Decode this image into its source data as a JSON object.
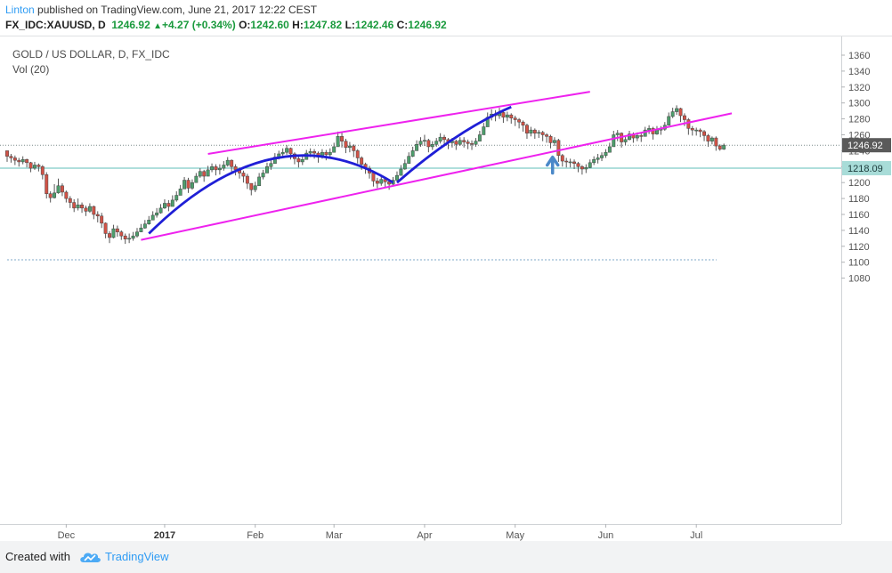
{
  "header": {
    "author": "Linton",
    "published_text": " published on TradingView.com, June 21, 2017 12:22 CEST",
    "symbol": "FX_IDC:XAUUSD, D",
    "last": "1246.92",
    "change_arrow": "▲",
    "change": "+4.27 (+0.34%)",
    "open_label": "O:",
    "open": "1242.60",
    "high_label": "H:",
    "high": "1247.82",
    "low_label": "L:",
    "low": "1242.46",
    "close_label": "C:",
    "close": "1246.92"
  },
  "legend": {
    "title": "GOLD / US DOLLAR, D, FX_IDC",
    "indicator": "Vol (20)"
  },
  "footer": {
    "created_with": "Created with",
    "brand": "TradingView"
  },
  "colors": {
    "up": "#4d9e6c",
    "down": "#d15246",
    "trendline": "#ee22ee",
    "arc": "#1f1fd6",
    "arrow": "#4a88c8",
    "hline": "#5fbfb8",
    "price_tag": "#5a5a5a",
    "hline_tag": "#a8dcd8"
  },
  "chart_data": {
    "type": "candlestick",
    "symbol": "GOLD / US DOLLAR, D, FX_IDC",
    "ylim": [
      1065,
      1373
    ],
    "y_ticks": [
      1080,
      1100,
      1120,
      1140,
      1160,
      1180,
      1200,
      1220,
      1240,
      1260,
      1280,
      1300,
      1320,
      1340,
      1360
    ],
    "x_ticks": [
      "Dec",
      "2017",
      "Feb",
      "Mar",
      "Apr",
      "May",
      "Jun",
      "Jul"
    ],
    "last_price_label": "1246.92",
    "horizontal_line_label": "1218.09",
    "price_line": 1246.92,
    "horizontal_line": 1218.09,
    "dotted_line": 1103,
    "close": [
      1233,
      1231,
      1228,
      1226,
      1229,
      1225,
      1218,
      1222,
      1220,
      1210,
      1186,
      1181,
      1187,
      1196,
      1188,
      1180,
      1175,
      1168,
      1172,
      1168,
      1164,
      1170,
      1160,
      1158,
      1149,
      1136,
      1131,
      1142,
      1138,
      1133,
      1129,
      1130,
      1133,
      1138,
      1143,
      1148,
      1153,
      1159,
      1162,
      1168,
      1174,
      1170,
      1178,
      1184,
      1192,
      1203,
      1193,
      1200,
      1208,
      1214,
      1208,
      1216,
      1220,
      1216,
      1218,
      1222,
      1228,
      1220,
      1216,
      1212,
      1208,
      1199,
      1191,
      1196,
      1207,
      1212,
      1220,
      1224,
      1232,
      1236,
      1238,
      1243,
      1236,
      1230,
      1226,
      1229,
      1237,
      1239,
      1237,
      1232,
      1238,
      1235,
      1238,
      1245,
      1258,
      1252,
      1244,
      1246,
      1240,
      1231,
      1223,
      1218,
      1212,
      1202,
      1199,
      1204,
      1201,
      1198,
      1203,
      1209,
      1217,
      1224,
      1233,
      1240,
      1248,
      1252,
      1253,
      1245,
      1248,
      1252,
      1257,
      1254,
      1250,
      1252,
      1248,
      1253,
      1251,
      1249,
      1248,
      1252,
      1260,
      1270,
      1282,
      1286,
      1284,
      1288,
      1282,
      1285,
      1281,
      1279,
      1276,
      1272,
      1262,
      1266,
      1262,
      1263,
      1260,
      1258,
      1250,
      1253,
      1234,
      1227,
      1226,
      1226,
      1224,
      1220,
      1217,
      1219,
      1225,
      1229,
      1231,
      1234,
      1238,
      1245,
      1260,
      1262,
      1251,
      1254,
      1261,
      1256,
      1259,
      1258,
      1266,
      1268,
      1261,
      1267,
      1267,
      1272,
      1283,
      1289,
      1293,
      1284,
      1279,
      1268,
      1266,
      1266,
      1264,
      1259,
      1252,
      1256,
      1246,
      1242,
      1247
    ],
    "high": [
      1238,
      1236,
      1234,
      1231,
      1233,
      1230,
      1226,
      1226,
      1224,
      1222,
      1213,
      1189,
      1198,
      1205,
      1199,
      1190,
      1183,
      1179,
      1180,
      1175,
      1171,
      1174,
      1171,
      1164,
      1162,
      1150,
      1139,
      1147,
      1146,
      1140,
      1136,
      1136,
      1138,
      1143,
      1148,
      1153,
      1158,
      1164,
      1168,
      1173,
      1179,
      1178,
      1184,
      1189,
      1197,
      1207,
      1206,
      1204,
      1212,
      1218,
      1216,
      1221,
      1224,
      1223,
      1223,
      1227,
      1232,
      1229,
      1223,
      1219,
      1215,
      1211,
      1199,
      1201,
      1212,
      1216,
      1225,
      1229,
      1237,
      1240,
      1243,
      1247,
      1244,
      1238,
      1233,
      1233,
      1241,
      1243,
      1242,
      1239,
      1242,
      1241,
      1243,
      1250,
      1264,
      1263,
      1255,
      1251,
      1248,
      1242,
      1233,
      1225,
      1221,
      1215,
      1206,
      1208,
      1206,
      1203,
      1207,
      1214,
      1222,
      1229,
      1238,
      1245,
      1253,
      1257,
      1260,
      1255,
      1252,
      1256,
      1262,
      1260,
      1256,
      1256,
      1254,
      1257,
      1257,
      1254,
      1253,
      1256,
      1265,
      1275,
      1288,
      1292,
      1291,
      1294,
      1290,
      1289,
      1287,
      1284,
      1281,
      1278,
      1274,
      1270,
      1268,
      1266,
      1265,
      1262,
      1260,
      1257,
      1255,
      1236,
      1231,
      1230,
      1229,
      1226,
      1222,
      1223,
      1229,
      1233,
      1236,
      1238,
      1242,
      1250,
      1265,
      1266,
      1263,
      1258,
      1265,
      1263,
      1263,
      1262,
      1270,
      1272,
      1270,
      1271,
      1271,
      1276,
      1288,
      1294,
      1297,
      1294,
      1287,
      1281,
      1271,
      1269,
      1268,
      1266,
      1261,
      1258,
      1258,
      1248,
      1249
    ],
    "low": [
      1226,
      1225,
      1222,
      1220,
      1223,
      1219,
      1213,
      1216,
      1214,
      1204,
      1180,
      1175,
      1180,
      1186,
      1183,
      1175,
      1168,
      1163,
      1165,
      1162,
      1158,
      1162,
      1154,
      1150,
      1143,
      1130,
      1124,
      1130,
      1132,
      1128,
      1123,
      1124,
      1127,
      1131,
      1138,
      1142,
      1147,
      1153,
      1156,
      1161,
      1167,
      1164,
      1170,
      1176,
      1185,
      1193,
      1187,
      1191,
      1200,
      1206,
      1201,
      1208,
      1213,
      1209,
      1210,
      1215,
      1220,
      1213,
      1209,
      1205,
      1200,
      1192,
      1184,
      1188,
      1200,
      1204,
      1212,
      1216,
      1224,
      1229,
      1231,
      1235,
      1229,
      1223,
      1219,
      1222,
      1229,
      1232,
      1230,
      1225,
      1230,
      1228,
      1232,
      1238,
      1248,
      1244,
      1237,
      1238,
      1232,
      1224,
      1216,
      1211,
      1205,
      1195,
      1193,
      1196,
      1194,
      1191,
      1196,
      1202,
      1210,
      1216,
      1226,
      1232,
      1240,
      1245,
      1246,
      1238,
      1241,
      1245,
      1249,
      1247,
      1242,
      1244,
      1241,
      1246,
      1244,
      1242,
      1241,
      1245,
      1252,
      1262,
      1274,
      1278,
      1277,
      1280,
      1275,
      1277,
      1274,
      1271,
      1268,
      1264,
      1255,
      1258,
      1255,
      1256,
      1252,
      1250,
      1243,
      1246,
      1226,
      1220,
      1219,
      1219,
      1217,
      1213,
      1210,
      1212,
      1218,
      1222,
      1224,
      1227,
      1231,
      1238,
      1252,
      1252,
      1244,
      1247,
      1253,
      1250,
      1252,
      1251,
      1258,
      1261,
      1254,
      1260,
      1260,
      1265,
      1274,
      1281,
      1285,
      1276,
      1271,
      1260,
      1259,
      1259,
      1257,
      1252,
      1245,
      1248,
      1240,
      1240,
      1241
    ]
  }
}
